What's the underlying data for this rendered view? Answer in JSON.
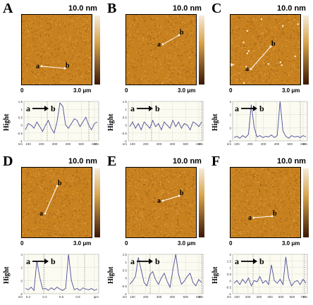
{
  "figure": {
    "panels": [
      {
        "letter": "A",
        "scale": "10.0 nm",
        "axis_start": "0",
        "axis_end": "3.0 μm",
        "marker_a": "a",
        "marker_b": "b",
        "profile_a": "a",
        "profile_b": "b",
        "y_label": "Hight",
        "y_ticks": [
          "1.5",
          "1",
          "0.5",
          "0",
          "-0.5",
          "-1"
        ],
        "x_ticks": [
          "100",
          "200",
          "300",
          "400",
          "500",
          "600"
        ],
        "y_unit": "nm",
        "x_unit": "nm",
        "profile_values": [
          -0.3,
          0.1,
          0.0,
          -0.2,
          0.2,
          -0.1,
          -0.4,
          0.0,
          0.3,
          -0.2,
          -0.5,
          0.2,
          1.4,
          1.2,
          0.0,
          -0.2,
          0.1,
          0.4,
          0.3,
          -0.1,
          0.2,
          0.5,
          0.0,
          -0.3,
          0.1,
          0.2
        ]
      },
      {
        "letter": "B",
        "scale": "10.0 nm",
        "axis_start": "0",
        "axis_end": "3.0 μm",
        "marker_a": "a",
        "marker_b": "b",
        "profile_a": "a",
        "profile_b": "b",
        "y_label": "Hight",
        "y_ticks": [
          "1.5",
          "1",
          "0.5",
          "0",
          "-0.5",
          "-1"
        ],
        "x_ticks": [
          "100",
          "200",
          "300",
          "400",
          "500",
          "600"
        ],
        "y_unit": "nm",
        "x_unit": "nm",
        "profile_values": [
          -0.1,
          0.2,
          -0.2,
          0.1,
          -0.3,
          0.2,
          0.0,
          -0.2,
          0.3,
          -0.1,
          0.1,
          -0.3,
          0.2,
          0.0,
          -0.2,
          0.3,
          -0.1,
          0.2,
          -0.2,
          0.1,
          0.0,
          -0.3,
          0.2,
          0.1,
          -0.1,
          0.2
        ]
      },
      {
        "letter": "C",
        "scale": "10.0 nm",
        "axis_start": "0",
        "axis_end": "3.0 μm",
        "marker_a": "a",
        "marker_b": "b",
        "profile_a": "a",
        "profile_b": "b",
        "y_label": "Hight",
        "y_ticks": [
          "4",
          "2",
          "0",
          "-2"
        ],
        "x_ticks": [
          "100",
          "200",
          "300",
          "400",
          "500",
          "600"
        ],
        "y_unit": "nm",
        "x_unit": "nm",
        "profile_values": [
          -1.5,
          -1.3,
          -1.6,
          -1.2,
          -1.5,
          -1.0,
          3.5,
          0.0,
          -1.4,
          -1.2,
          -1.5,
          -1.3,
          -1.4,
          -1.1,
          -1.5,
          -1.2,
          4.5,
          -0.5,
          -1.3,
          -1.6,
          -1.2,
          -1.4,
          -1.3,
          -1.5,
          -1.2,
          -1.4
        ]
      },
      {
        "letter": "D",
        "scale": "10.0 nm",
        "axis_start": "0",
        "axis_end": "3.0 μm",
        "marker_a": "a",
        "marker_b": "b",
        "profile_a": "a",
        "profile_b": "b",
        "y_label": "Hight",
        "y_ticks": [
          "4",
          "2",
          "0",
          "-2"
        ],
        "x_ticks": [
          "0.2",
          "0.4",
          "0.6",
          "0.8",
          "1"
        ],
        "y_unit": "nm",
        "x_unit": "μm",
        "profile_values": [
          -1.2,
          -1.4,
          -1.0,
          -1.5,
          3.0,
          0.5,
          -1.3,
          -1.2,
          -1.5,
          -1.1,
          -1.4,
          -1.0,
          -1.3,
          -1.5,
          -1.2,
          4.0,
          0.0,
          -1.4,
          -1.2,
          -1.5,
          -1.1,
          -1.3,
          -1.4,
          -1.2,
          -1.5,
          -1.3
        ]
      },
      {
        "letter": "E",
        "scale": "10.0 nm",
        "axis_start": "0",
        "axis_end": "3.0 μm",
        "marker_a": "a",
        "marker_b": "b",
        "profile_a": "a",
        "profile_b": "b",
        "y_label": "Hight",
        "y_ticks": [
          "1.5",
          "1",
          "0.5",
          "0",
          "-0.5",
          "-1"
        ],
        "x_ticks": [
          "100",
          "200",
          "300",
          "400",
          "500",
          "600"
        ],
        "y_unit": "nm",
        "x_unit": "nm",
        "profile_values": [
          -0.4,
          -0.2,
          0.1,
          1.3,
          0.5,
          -0.3,
          -0.5,
          0.2,
          0.4,
          -0.1,
          -0.4,
          0.0,
          0.3,
          -0.2,
          -0.6,
          0.5,
          1.5,
          0.2,
          -0.4,
          -0.2,
          0.1,
          0.3,
          -0.3,
          -0.5,
          -0.1,
          -0.3
        ]
      },
      {
        "letter": "F",
        "scale": "10.0 nm",
        "axis_start": "0",
        "axis_end": "3.0 μm",
        "marker_a": "a",
        "marker_b": "b",
        "profile_a": "a",
        "profile_b": "b",
        "y_label": "Hight",
        "y_ticks": [
          "2",
          "1.5",
          "1",
          "0.5",
          "0",
          "-0.5",
          "-1"
        ],
        "x_ticks": [
          "100",
          "200",
          "300",
          "400",
          "500",
          "600",
          "700"
        ],
        "y_unit": "nm",
        "x_unit": "nm",
        "profile_values": [
          -0.2,
          0.0,
          -0.3,
          0.1,
          -0.2,
          0.2,
          -0.4,
          0.0,
          -0.1,
          0.3,
          -0.2,
          0.0,
          -0.3,
          1.2,
          0.0,
          -0.2,
          0.1,
          -0.3,
          1.8,
          0.2,
          -0.4,
          -0.1,
          0.0,
          -0.3,
          0.1,
          -0.2
        ]
      }
    ],
    "colors": {
      "afm_base": "#c8811f",
      "afm_dark": "#8a4f12",
      "afm_light": "#e6b45a",
      "colorbar_top": "#f5ecd9",
      "colorbar_mid": "#d8a24a",
      "colorbar_bottom": "#3a1705",
      "profile_line": "#4d4d9a",
      "profile_bg": "#fbfbf2",
      "grid": "#dcdcd0",
      "marker_line": "#ffffff"
    }
  }
}
